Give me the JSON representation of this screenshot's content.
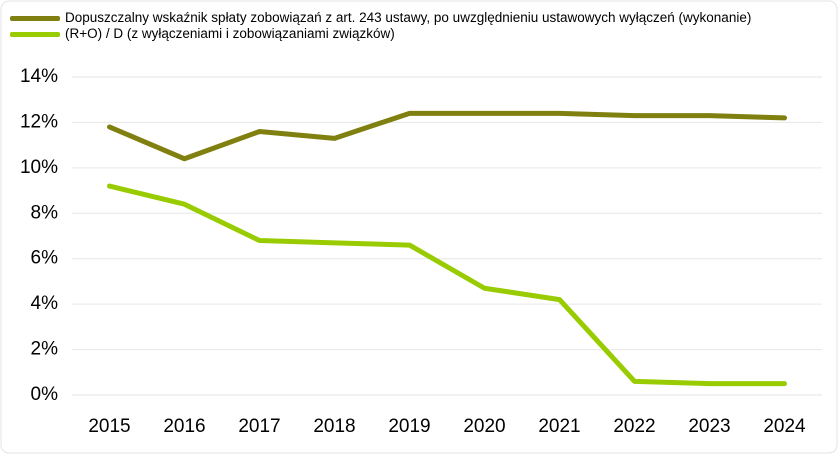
{
  "chart_data": {
    "type": "line",
    "categories": [
      "2015",
      "2016",
      "2017",
      "2018",
      "2019",
      "2020",
      "2021",
      "2022",
      "2023",
      "2024"
    ],
    "series": [
      {
        "name": "Dopuszczalny wskaźnik spłaty zobowiązań z art. 243 ustawy, po uwzględnieniu ustawowych wyłączeń (wykonanie)",
        "color": "#808010",
        "values": [
          11.8,
          10.4,
          11.6,
          11.3,
          12.4,
          12.4,
          12.4,
          12.3,
          12.3,
          12.2
        ]
      },
      {
        "name": "(R+O) / D (z wyłączeniami i zobowiązaniami związków)",
        "color": "#99cc00",
        "values": [
          9.2,
          8.4,
          6.8,
          6.7,
          6.6,
          4.7,
          4.2,
          0.6,
          0.5,
          0.5
        ]
      }
    ],
    "ylim": [
      0,
      14
    ],
    "yticks": [
      {
        "value": 0,
        "label": "0%"
      },
      {
        "value": 2,
        "label": "2%"
      },
      {
        "value": 4,
        "label": "4%"
      },
      {
        "value": 6,
        "label": "6%"
      },
      {
        "value": 8,
        "label": "8%"
      },
      {
        "value": 10,
        "label": "10%"
      },
      {
        "value": 12,
        "label": "12%"
      },
      {
        "value": 14,
        "label": "14%"
      }
    ],
    "grid": true
  }
}
